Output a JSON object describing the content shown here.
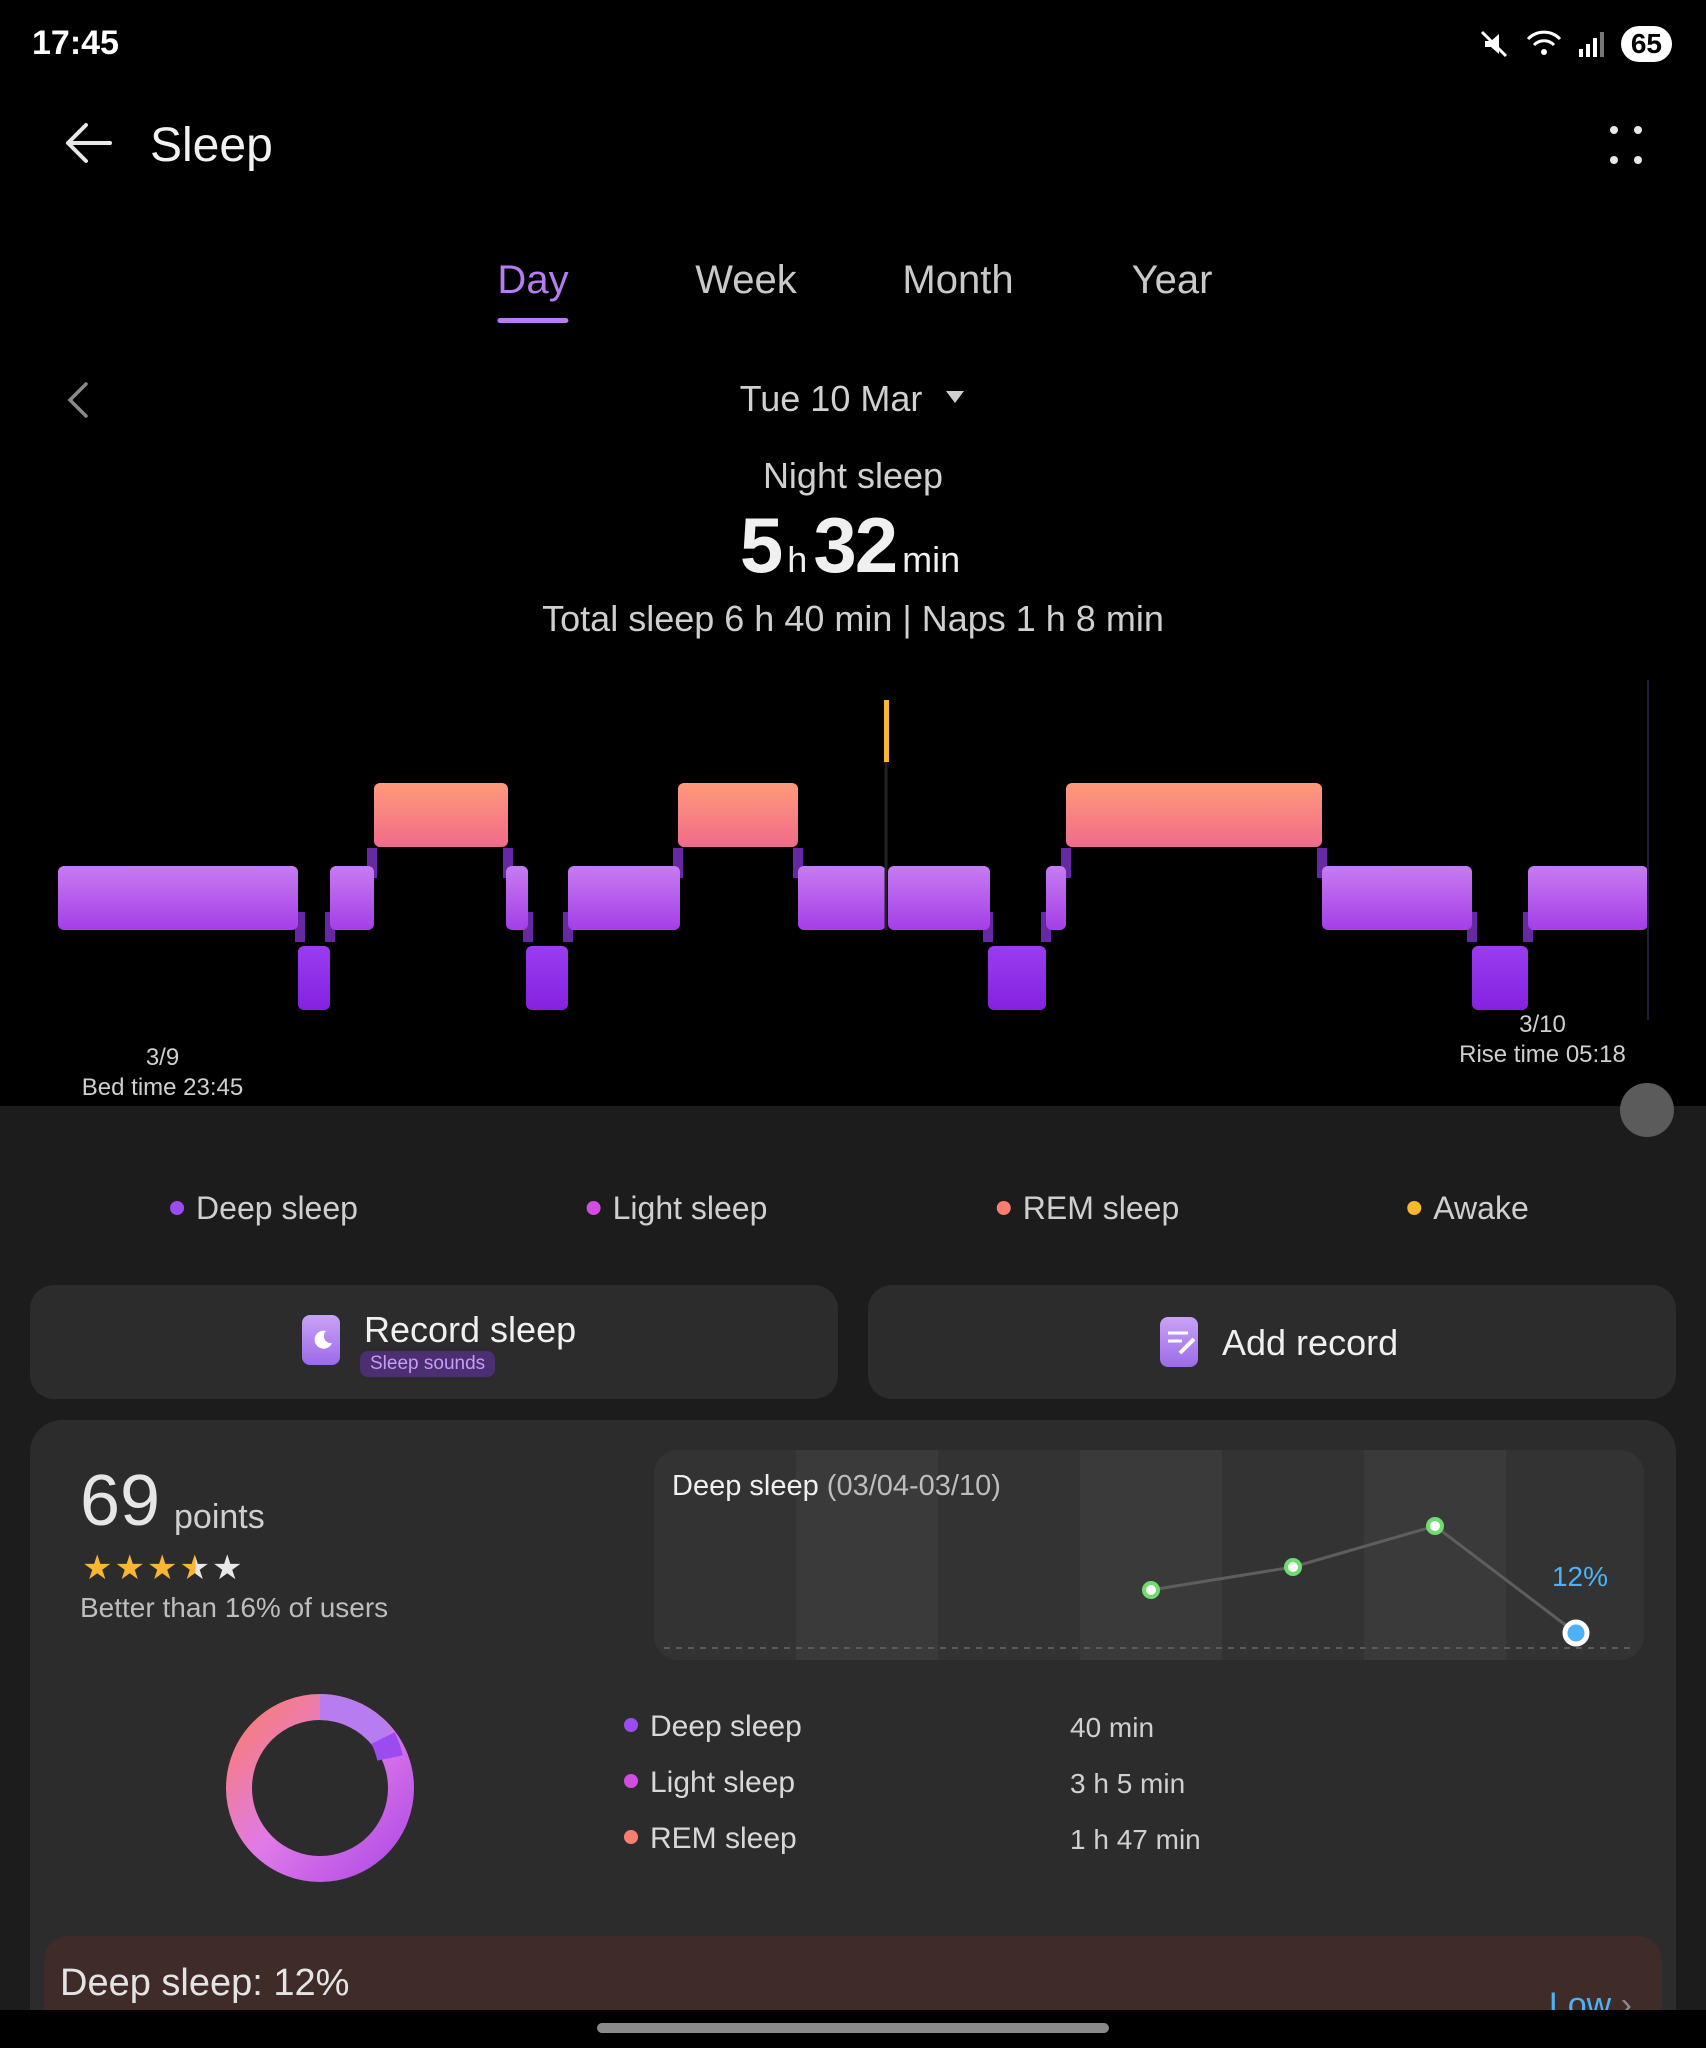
{
  "status": {
    "time": "17:45",
    "battery": "65"
  },
  "header": {
    "title": "Sleep"
  },
  "tabs": [
    {
      "label": "Day",
      "active": true
    },
    {
      "label": "Week",
      "active": false
    },
    {
      "label": "Month",
      "active": false
    },
    {
      "label": "Year",
      "active": false
    }
  ],
  "date": {
    "label": "Tue 10 Mar"
  },
  "summary": {
    "night_label": "Night sleep",
    "hours": "5",
    "h_unit": "h",
    "minutes": "32",
    "min_unit": "min",
    "totals": "Total sleep 6 h 40 min | Naps 1 h 8 min"
  },
  "chart": {
    "bed_date": "3/9",
    "bed_time": "Bed time 23:45",
    "rise_date": "3/10",
    "rise_time": "Rise time 05:18"
  },
  "colors": {
    "deep": "#9b4cf0",
    "light": "#d24ee0",
    "rem": "#fa7d72",
    "awake": "#f7b731",
    "accent": "#b77cf0",
    "trend_point": "#6fdc6f",
    "trend_current": "#4db1f5"
  },
  "legend": [
    "Deep sleep",
    "Light sleep",
    "REM sleep",
    "Awake"
  ],
  "actions": {
    "record_label": "Record sleep",
    "record_badge": "Sleep sounds",
    "add_label": "Add record"
  },
  "score": {
    "value": "69",
    "unit": "points",
    "stars_rating": 3.5,
    "stars_max": 5,
    "comparison": "Better than 16% of users"
  },
  "trend": {
    "title": "Deep sleep",
    "range": "(03/04-03/10)",
    "current_label": "12%"
  },
  "breakdown": [
    {
      "label": "Deep sleep",
      "value": "40 min"
    },
    {
      "label": "Light sleep",
      "value": "3 h 5 min"
    },
    {
      "label": "REM sleep",
      "value": "1 h 47 min"
    }
  ],
  "banner": {
    "text": "Deep sleep: 12%",
    "status": "Low"
  },
  "icons": {
    "back": "arrow-left-icon",
    "menu": "more-vert-icon",
    "prev": "chevron-left-icon",
    "dropdown": "caret-down-icon",
    "record": "moon-phone-icon",
    "add": "note-edit-icon"
  }
}
